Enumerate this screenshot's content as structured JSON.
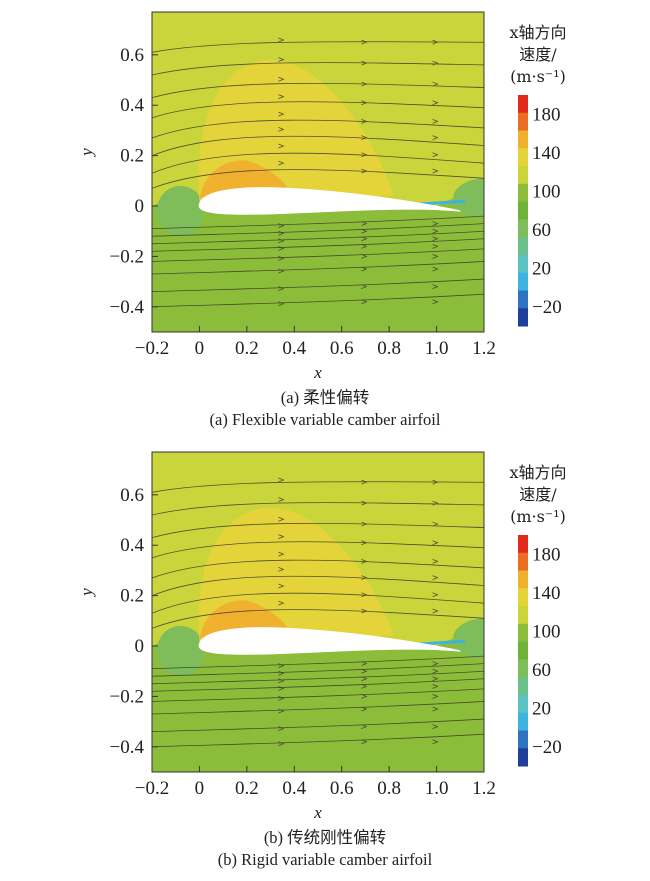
{
  "chart_data": [
    {
      "type": "contour",
      "title": "",
      "caption_cn": "(a) 柔性偏转",
      "caption_en": "(a) Flexible variable camber airfoil",
      "xlabel": "x",
      "ylabel": "y",
      "xlim": [
        -0.2,
        1.2
      ],
      "ylim": [
        -0.5,
        0.77
      ],
      "xticks": [
        "−0.2",
        "0",
        "0.2",
        "0.4",
        "0.6",
        "0.8",
        "1.0",
        "1.2"
      ],
      "yticks": [
        "0.6",
        "0.4",
        "0.2",
        "0",
        "−0.2",
        "−0.4"
      ],
      "colorbar": {
        "title_line1": "x轴方向",
        "title_line2": "速度/",
        "title_line3": "(m·s⁻¹)",
        "labels": [
          "−20",
          "20",
          "60",
          "100",
          "140",
          "180"
        ],
        "levels": [
          -40,
          -20,
          0,
          20,
          40,
          60,
          80,
          100,
          120,
          140,
          160,
          180,
          200
        ],
        "colors": [
          "#1f3f9a",
          "#2e74c0",
          "#3fb3e0",
          "#5cc3c4",
          "#6dc08b",
          "#7fbd5a",
          "#6fb23a",
          "#8cbd3a",
          "#c9d53a",
          "#e4d43a",
          "#f0b12f",
          "#ec6d22",
          "#e22a1b"
        ]
      },
      "background_value": 135,
      "lower_flow_value": 100,
      "upper_bubble_value": 150,
      "suction_peak_value": 175,
      "bubble_top_y": 0.58
    },
    {
      "type": "contour",
      "title": "",
      "caption_cn": "(b) 传统刚性偏转",
      "caption_en": "(b) Rigid variable camber airfoil",
      "xlabel": "x",
      "ylabel": "y",
      "xlim": [
        -0.2,
        1.2
      ],
      "ylim": [
        -0.5,
        0.77
      ],
      "xticks": [
        "−0.2",
        "0",
        "0.2",
        "0.4",
        "0.6",
        "0.8",
        "1.0",
        "1.2"
      ],
      "yticks": [
        "0.6",
        "0.4",
        "0.2",
        "0",
        "−0.2",
        "−0.4"
      ],
      "colorbar": {
        "title_line1": "x轴方向",
        "title_line2": "速度/",
        "title_line3": "(m·s⁻¹)",
        "labels": [
          "−20",
          "20",
          "60",
          "100",
          "140",
          "180"
        ],
        "levels": [
          -40,
          -20,
          0,
          20,
          40,
          60,
          80,
          100,
          120,
          140,
          160,
          180,
          200
        ],
        "colors": [
          "#1f3f9a",
          "#2e74c0",
          "#3fb3e0",
          "#5cc3c4",
          "#6dc08b",
          "#7fbd5a",
          "#6fb23a",
          "#8cbd3a",
          "#c9d53a",
          "#e4d43a",
          "#f0b12f",
          "#ec6d22",
          "#e22a1b"
        ]
      },
      "background_value": 135,
      "lower_flow_value": 100,
      "upper_bubble_value": 150,
      "suction_peak_value": 175,
      "bubble_top_y": 0.55
    }
  ]
}
